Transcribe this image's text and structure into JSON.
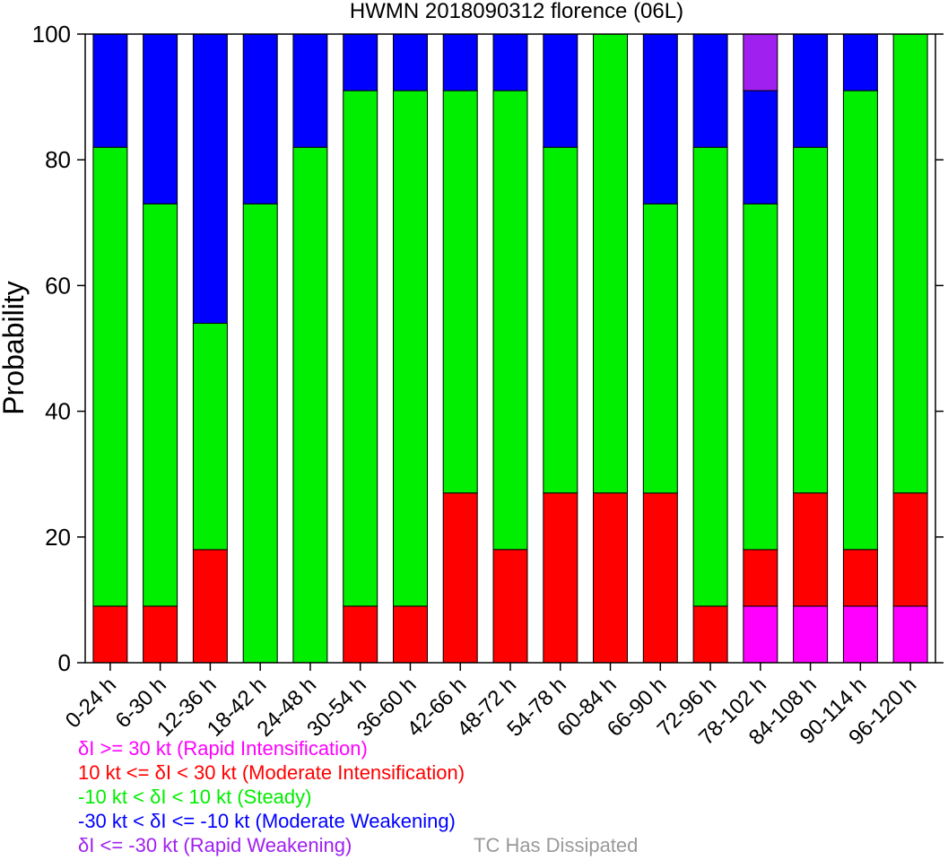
{
  "chart_data": {
    "type": "bar",
    "stacked": true,
    "title": "HWMN 2018090312 florence (06L)",
    "ylabel": "Probability",
    "xlabel": "",
    "ylim": [
      0,
      100
    ],
    "yticks": [
      "0",
      "20",
      "40",
      "60",
      "80",
      "100"
    ],
    "grid": false,
    "categories": [
      "0-24 h",
      "6-30 h",
      "12-36 h",
      "18-42 h",
      "24-48 h",
      "30-54 h",
      "36-60 h",
      "42-66 h",
      "48-72 h",
      "54-78 h",
      "60-84 h",
      "66-90 h",
      "72-96 h",
      "78-102 h",
      "84-108 h",
      "90-114 h",
      "96-120 h"
    ],
    "series": [
      {
        "name": "δI >= 30 kt (Rapid Intensification)",
        "color": "#ff00ff",
        "values": [
          0,
          0,
          0,
          0,
          0,
          0,
          0,
          0,
          0,
          0,
          0,
          0,
          0,
          9,
          9,
          9,
          9
        ]
      },
      {
        "name": "10 kt <= δI < 30 kt (Moderate Intensification)",
        "color": "#ff0000",
        "values": [
          9,
          9,
          18,
          0,
          0,
          9,
          9,
          27,
          18,
          27,
          27,
          27,
          9,
          9,
          18,
          9,
          18
        ]
      },
      {
        "name": "-10 kt < δI < 10 kt (Steady)",
        "color": "#00ee00",
        "values": [
          73,
          64,
          36,
          73,
          82,
          82,
          82,
          64,
          73,
          55,
          73,
          46,
          73,
          55,
          55,
          73,
          73
        ]
      },
      {
        "name": "-30 kt < δI <= -10 kt (Moderate Weakening)",
        "color": "#0000ff",
        "values": [
          18,
          27,
          46,
          27,
          18,
          9,
          9,
          9,
          9,
          18,
          0,
          27,
          18,
          18,
          18,
          9,
          0
        ]
      },
      {
        "name": "δI <= -30 kt (Rapid Weakening)",
        "color": "#a020f0",
        "values": [
          0,
          0,
          0,
          0,
          0,
          0,
          0,
          0,
          0,
          0,
          0,
          0,
          0,
          9,
          0,
          0,
          0
        ]
      }
    ],
    "extra_legend": {
      "name": "TC Has Dissipated",
      "color": "#999999"
    },
    "legend_placement": "bottom-left"
  }
}
